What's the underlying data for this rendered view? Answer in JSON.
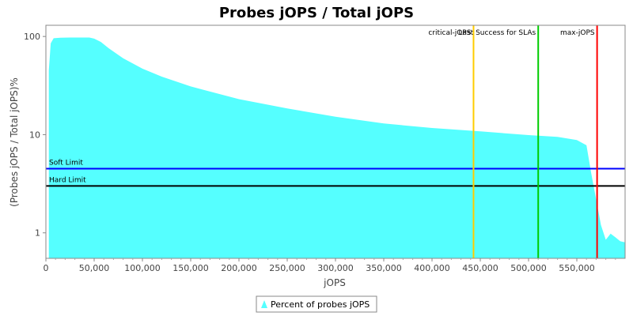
{
  "chart_data": {
    "type": "area",
    "title": "Probes jOPS / Total jOPS",
    "xlabel": "jOPS",
    "ylabel": "(Probes jOPS / Total jOPS)%",
    "y_scale": "log",
    "xlim": [
      0,
      600000
    ],
    "ylim": [
      0.55,
      130
    ],
    "x_ticks": [
      0,
      50000,
      100000,
      150000,
      200000,
      250000,
      300000,
      350000,
      400000,
      450000,
      500000,
      550000
    ],
    "x_tick_labels": [
      "0",
      "50,000",
      "100,000",
      "150,000",
      "200,000",
      "250,000",
      "300,000",
      "350,000",
      "400,000",
      "450,000",
      "500,000",
      "550,000"
    ],
    "y_ticks": [
      1,
      10,
      100
    ],
    "y_tick_labels": [
      "1",
      "10",
      "100"
    ],
    "grid": false,
    "legend": {
      "position": "bottom-center",
      "entries": [
        "Percent of probes jOPS"
      ]
    },
    "series": [
      {
        "name": "Percent of probes jOPS",
        "color": "#55ffff",
        "x": [
          3000,
          5000,
          8000,
          15000,
          25000,
          35000,
          45000,
          50000,
          57000,
          65000,
          80000,
          100000,
          120000,
          150000,
          200000,
          250000,
          300000,
          350000,
          400000,
          450000,
          500000,
          530000,
          550000,
          560000,
          565000,
          570000,
          575000,
          580000,
          585000,
          590000,
          595000,
          600000
        ],
        "y": [
          45,
          85,
          96,
          97,
          97.5,
          97.5,
          97.5,
          95,
          88,
          76,
          60,
          47,
          39,
          31,
          23,
          18.5,
          15.2,
          13,
          11.7,
          10.8,
          9.9,
          9.5,
          8.8,
          7.8,
          4,
          2.2,
          1.2,
          0.85,
          0.98,
          0.9,
          0.82,
          0.8
        ]
      }
    ],
    "horizontal_lines": [
      {
        "label": "Soft Limit",
        "y": 4.5,
        "color": "#0000ff"
      },
      {
        "label": "Hard Limit",
        "y": 3.0,
        "color": "#000000"
      }
    ],
    "vertical_lines": [
      {
        "label": "critical-jOPS",
        "x": 443000,
        "color": "#ffcc00"
      },
      {
        "label": "Last Success for SLAs",
        "x": 510000,
        "color": "#00cc00"
      },
      {
        "label": "max-jOPS",
        "x": 571000,
        "color": "#ff0000"
      }
    ]
  }
}
